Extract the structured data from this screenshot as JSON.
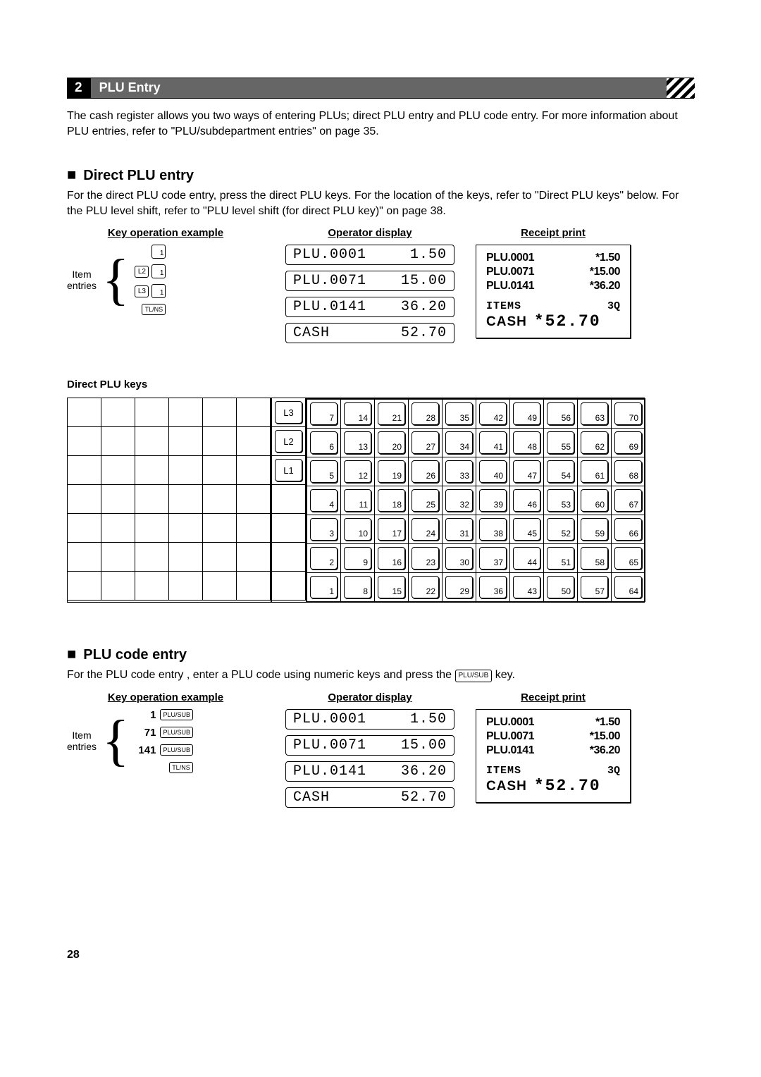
{
  "section": {
    "num": "2",
    "title": "PLU Entry"
  },
  "intro": "The cash register allows you two ways of entering PLUs; direct PLU entry and PLU code entry.  For more information about PLU entries, refer to \"PLU/subdepartment entries\" on page 35.",
  "direct": {
    "heading": "Direct PLU entry",
    "para": "For the direct PLU code entry, press the direct PLU keys.  For the location of the keys, refer to \"Direct PLU keys\" below.  For the PLU level shift, refer to \"PLU level shift (for direct PLU key)\" on page 38.",
    "col_heads": [
      "Key operation example",
      "Operator display",
      "Receipt print"
    ],
    "item_label": "Item\nentries",
    "key_rows": [
      {
        "keys": [
          {
            "t": "num",
            "v": "1"
          }
        ]
      },
      {
        "keys": [
          {
            "t": "k",
            "v": "L2"
          },
          {
            "t": "num",
            "v": "1"
          }
        ]
      },
      {
        "keys": [
          {
            "t": "k",
            "v": "L3"
          },
          {
            "t": "num",
            "v": "1"
          }
        ]
      },
      {
        "keys": [
          {
            "t": "kw",
            "v": "TL/NS"
          }
        ]
      }
    ],
    "display": [
      {
        "l": "PLU.0001",
        "r": "1.50"
      },
      {
        "l": "PLU.0071",
        "r": "15.00"
      },
      {
        "l": "PLU.0141",
        "r": "36.20"
      },
      {
        "l": "CASH",
        "r": "52.70"
      }
    ],
    "receipt": {
      "lines": [
        {
          "l": "PLU.0001",
          "r": "*1.50"
        },
        {
          "l": "PLU.0071",
          "r": "*15.00"
        },
        {
          "l": "PLU.0141",
          "r": "*36.20"
        }
      ],
      "items_l": "ITEMS",
      "items_r": "3Q",
      "cash_l": "CASH",
      "cash_r": "*52.70"
    }
  },
  "dpk": {
    "label": "Direct PLU keys",
    "mid": [
      "L3",
      "L2",
      "L1",
      "",
      "",
      "",
      ""
    ],
    "grid": [
      [
        7,
        14,
        21,
        28,
        35,
        42,
        49,
        56,
        63,
        70
      ],
      [
        6,
        13,
        20,
        27,
        34,
        41,
        48,
        55,
        62,
        69
      ],
      [
        5,
        12,
        19,
        26,
        33,
        40,
        47,
        54,
        61,
        68
      ],
      [
        4,
        11,
        18,
        25,
        32,
        39,
        46,
        53,
        60,
        67
      ],
      [
        3,
        10,
        17,
        24,
        31,
        38,
        45,
        52,
        59,
        66
      ],
      [
        2,
        9,
        16,
        23,
        30,
        37,
        44,
        51,
        58,
        65
      ],
      [
        1,
        8,
        15,
        22,
        29,
        36,
        43,
        50,
        57,
        64
      ]
    ]
  },
  "code": {
    "heading": "PLU code entry",
    "para_pre": "For the PLU code entry , enter a PLU code using numeric keys and press the ",
    "para_key": "PLU/SUB",
    "para_post": " key.",
    "col_heads": [
      "Key operation example",
      "Operator display",
      "Receipt print"
    ],
    "item_label": "Item\nentries",
    "key_rows": [
      {
        "pre": "1",
        "keys": [
          {
            "t": "kp",
            "v": "PLU/SUB"
          }
        ]
      },
      {
        "pre": "71",
        "keys": [
          {
            "t": "kp",
            "v": "PLU/SUB"
          }
        ]
      },
      {
        "pre": "141",
        "keys": [
          {
            "t": "kp",
            "v": "PLU/SUB"
          }
        ]
      },
      {
        "pre": "",
        "keys": [
          {
            "t": "kw",
            "v": "TL/NS"
          }
        ]
      }
    ],
    "display": [
      {
        "l": "PLU.0001",
        "r": "1.50"
      },
      {
        "l": "PLU.0071",
        "r": "15.00"
      },
      {
        "l": "PLU.0141",
        "r": "36.20"
      },
      {
        "l": "CASH",
        "r": "52.70"
      }
    ],
    "receipt": {
      "lines": [
        {
          "l": "PLU.0001",
          "r": "*1.50"
        },
        {
          "l": "PLU.0071",
          "r": "*15.00"
        },
        {
          "l": "PLU.0141",
          "r": "*36.20"
        }
      ],
      "items_l": "ITEMS",
      "items_r": "3Q",
      "cash_l": "CASH",
      "cash_r": "*52.70"
    }
  },
  "page_num": "28"
}
